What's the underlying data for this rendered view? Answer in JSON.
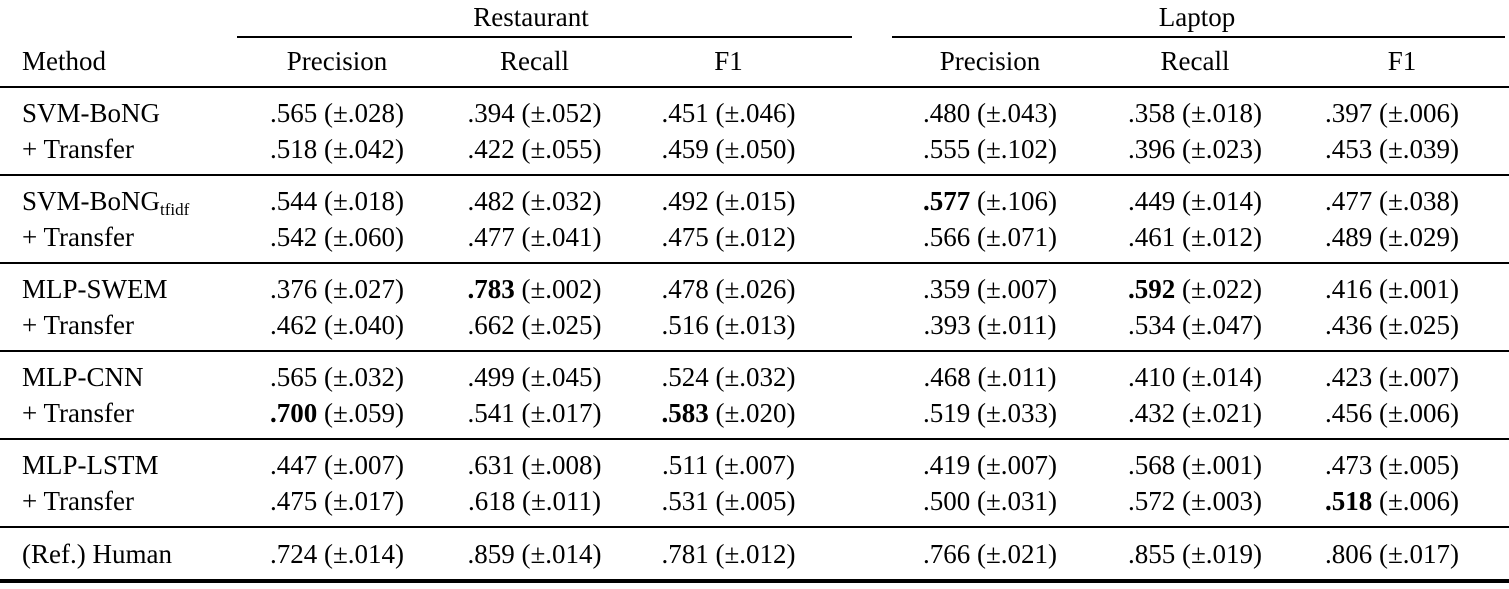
{
  "page": {
    "background_color": "#ffffff",
    "text_color": "#000000"
  },
  "table": {
    "group_headers": [
      "Restaurant",
      "Laptop"
    ],
    "method_header": "Method",
    "metric_headers": [
      "Precision",
      "Recall",
      "F1",
      "Precision",
      "Recall",
      "F1"
    ],
    "groups": [
      {
        "rows": [
          {
            "method": "SVM-BoNG",
            "method_sub": "",
            "cells": [
              {
                "value": ".565",
                "std": "(±.028)",
                "bold": false
              },
              {
                "value": ".394",
                "std": "(±.052)",
                "bold": false
              },
              {
                "value": ".451",
                "std": "(±.046)",
                "bold": false
              },
              {
                "value": ".480",
                "std": "(±.043)",
                "bold": false
              },
              {
                "value": ".358",
                "std": "(±.018)",
                "bold": false
              },
              {
                "value": ".397",
                "std": "(±.006)",
                "bold": false
              }
            ]
          },
          {
            "method": "+ Transfer",
            "method_sub": "",
            "cells": [
              {
                "value": ".518",
                "std": "(±.042)",
                "bold": false
              },
              {
                "value": ".422",
                "std": "(±.055)",
                "bold": false
              },
              {
                "value": ".459",
                "std": "(±.050)",
                "bold": false
              },
              {
                "value": ".555",
                "std": "(±.102)",
                "bold": false
              },
              {
                "value": ".396",
                "std": "(±.023)",
                "bold": false
              },
              {
                "value": ".453",
                "std": "(±.039)",
                "bold": false
              }
            ]
          }
        ]
      },
      {
        "rows": [
          {
            "method": "SVM-BoNG",
            "method_sub": "tfidf",
            "cells": [
              {
                "value": ".544",
                "std": "(±.018)",
                "bold": false
              },
              {
                "value": ".482",
                "std": "(±.032)",
                "bold": false
              },
              {
                "value": ".492",
                "std": "(±.015)",
                "bold": false
              },
              {
                "value": ".577",
                "std": "(±.106)",
                "bold": true
              },
              {
                "value": ".449",
                "std": "(±.014)",
                "bold": false
              },
              {
                "value": ".477",
                "std": "(±.038)",
                "bold": false
              }
            ]
          },
          {
            "method": "+ Transfer",
            "method_sub": "",
            "cells": [
              {
                "value": ".542",
                "std": "(±.060)",
                "bold": false
              },
              {
                "value": ".477",
                "std": "(±.041)",
                "bold": false
              },
              {
                "value": ".475",
                "std": "(±.012)",
                "bold": false
              },
              {
                "value": ".566",
                "std": "(±.071)",
                "bold": false
              },
              {
                "value": ".461",
                "std": "(±.012)",
                "bold": false
              },
              {
                "value": ".489",
                "std": "(±.029)",
                "bold": false
              }
            ]
          }
        ]
      },
      {
        "rows": [
          {
            "method": "MLP-SWEM",
            "method_sub": "",
            "cells": [
              {
                "value": ".376",
                "std": "(±.027)",
                "bold": false
              },
              {
                "value": ".783",
                "std": "(±.002)",
                "bold": true
              },
              {
                "value": ".478",
                "std": "(±.026)",
                "bold": false
              },
              {
                "value": ".359",
                "std": "(±.007)",
                "bold": false
              },
              {
                "value": ".592",
                "std": "(±.022)",
                "bold": true
              },
              {
                "value": ".416",
                "std": "(±.001)",
                "bold": false
              }
            ]
          },
          {
            "method": "+ Transfer",
            "method_sub": "",
            "cells": [
              {
                "value": ".462",
                "std": "(±.040)",
                "bold": false
              },
              {
                "value": ".662",
                "std": "(±.025)",
                "bold": false
              },
              {
                "value": ".516",
                "std": "(±.013)",
                "bold": false
              },
              {
                "value": ".393",
                "std": "(±.011)",
                "bold": false
              },
              {
                "value": ".534",
                "std": "(±.047)",
                "bold": false
              },
              {
                "value": ".436",
                "std": "(±.025)",
                "bold": false
              }
            ]
          }
        ]
      },
      {
        "rows": [
          {
            "method": "MLP-CNN",
            "method_sub": "",
            "cells": [
              {
                "value": ".565",
                "std": "(±.032)",
                "bold": false
              },
              {
                "value": ".499",
                "std": "(±.045)",
                "bold": false
              },
              {
                "value": ".524",
                "std": "(±.032)",
                "bold": false
              },
              {
                "value": ".468",
                "std": "(±.011)",
                "bold": false
              },
              {
                "value": ".410",
                "std": "(±.014)",
                "bold": false
              },
              {
                "value": ".423",
                "std": "(±.007)",
                "bold": false
              }
            ]
          },
          {
            "method": "+ Transfer",
            "method_sub": "",
            "cells": [
              {
                "value": ".700",
                "std": "(±.059)",
                "bold": true
              },
              {
                "value": ".541",
                "std": "(±.017)",
                "bold": false
              },
              {
                "value": ".583",
                "std": "(±.020)",
                "bold": true
              },
              {
                "value": ".519",
                "std": "(±.033)",
                "bold": false
              },
              {
                "value": ".432",
                "std": "(±.021)",
                "bold": false
              },
              {
                "value": ".456",
                "std": "(±.006)",
                "bold": false
              }
            ]
          }
        ]
      },
      {
        "rows": [
          {
            "method": "MLP-LSTM",
            "method_sub": "",
            "cells": [
              {
                "value": ".447",
                "std": "(±.007)",
                "bold": false
              },
              {
                "value": ".631",
                "std": "(±.008)",
                "bold": false
              },
              {
                "value": ".511",
                "std": "(±.007)",
                "bold": false
              },
              {
                "value": ".419",
                "std": "(±.007)",
                "bold": false
              },
              {
                "value": ".568",
                "std": "(±.001)",
                "bold": false
              },
              {
                "value": ".473",
                "std": "(±.005)",
                "bold": false
              }
            ]
          },
          {
            "method": "+ Transfer",
            "method_sub": "",
            "cells": [
              {
                "value": ".475",
                "std": "(±.017)",
                "bold": false
              },
              {
                "value": ".618",
                "std": "(±.011)",
                "bold": false
              },
              {
                "value": ".531",
                "std": "(±.005)",
                "bold": false
              },
              {
                "value": ".500",
                "std": "(±.031)",
                "bold": false
              },
              {
                "value": ".572",
                "std": "(±.003)",
                "bold": false
              },
              {
                "value": ".518",
                "std": "(±.006)",
                "bold": true
              }
            ]
          }
        ]
      },
      {
        "rows": [
          {
            "method": "(Ref.) Human",
            "method_sub": "",
            "cells": [
              {
                "value": ".724",
                "std": "(±.014)",
                "bold": false
              },
              {
                "value": ".859",
                "std": "(±.014)",
                "bold": false
              },
              {
                "value": ".781",
                "std": "(±.012)",
                "bold": false
              },
              {
                "value": ".766",
                "std": "(±.021)",
                "bold": false
              },
              {
                "value": ".855",
                "std": "(±.019)",
                "bold": false
              },
              {
                "value": ".806",
                "std": "(±.017)",
                "bold": false
              }
            ]
          }
        ]
      }
    ]
  }
}
